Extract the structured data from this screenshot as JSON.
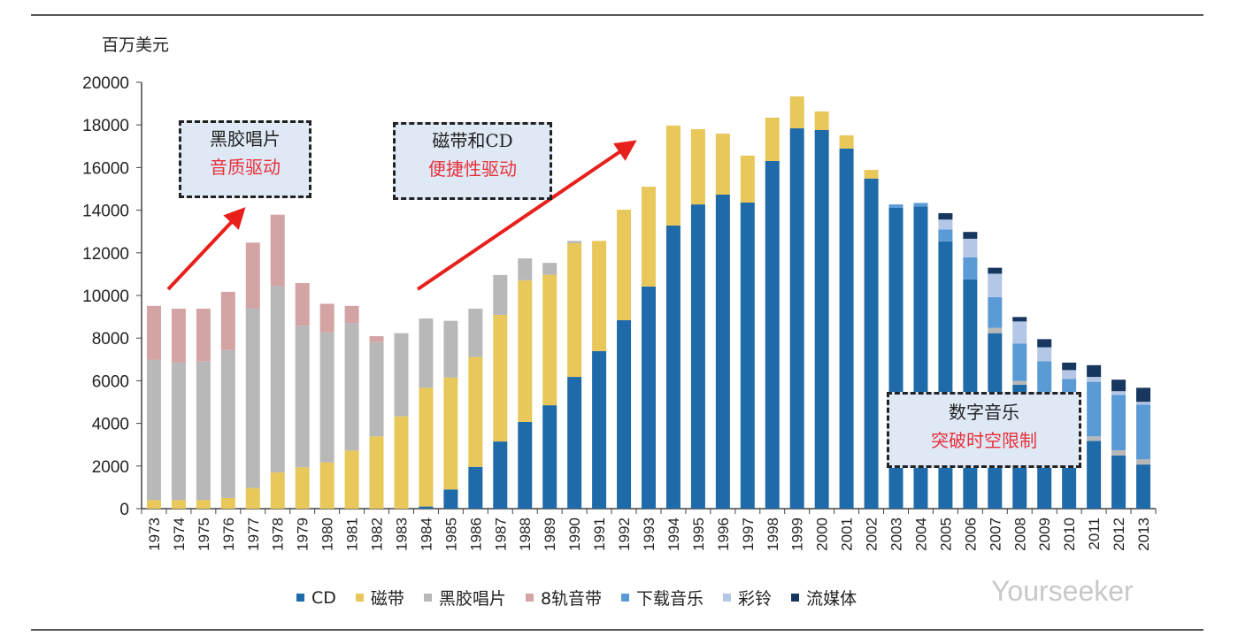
{
  "chart_data": {
    "type": "bar",
    "stacked": true,
    "ylabel": "百万美元",
    "ylim": [
      0,
      20000
    ],
    "yticks": [
      0,
      2000,
      4000,
      6000,
      8000,
      10000,
      12000,
      14000,
      16000,
      18000,
      20000
    ],
    "grid": false,
    "legend": "bottom",
    "categories": [
      "1973",
      "1974",
      "1975",
      "1976",
      "1977",
      "1978",
      "1979",
      "1980",
      "1981",
      "1982",
      "1983",
      "1984",
      "1985",
      "1986",
      "1987",
      "1988",
      "1989",
      "1990",
      "1991",
      "1992",
      "1993",
      "1994",
      "1995",
      "1996",
      "1997",
      "1998",
      "1999",
      "2000",
      "2001",
      "2002",
      "2003",
      "2004",
      "2005",
      "2006",
      "2007",
      "2008",
      "2009",
      "2010",
      "2011",
      "2012",
      "2013"
    ],
    "series": [
      {
        "name": "CD",
        "color": "#1f6aa8",
        "values": [
          0,
          0,
          0,
          0,
          0,
          0,
          0,
          0,
          0,
          0,
          0,
          100,
          900,
          1960,
          3150,
          4070,
          4850,
          6180,
          7390,
          8840,
          10420,
          13280,
          14270,
          14730,
          14360,
          16310,
          17840,
          17760,
          16890,
          15480,
          14110,
          14180,
          12540,
          10750,
          8230,
          5810,
          4300,
          3400,
          3180,
          2490,
          2070
        ]
      },
      {
        "name": "磁带",
        "color": "#e8c85a",
        "values": [
          400,
          400,
          400,
          500,
          970,
          1700,
          1940,
          2170,
          2730,
          3390,
          4330,
          5570,
          5250,
          5160,
          5940,
          6640,
          6120,
          6270,
          5170,
          5180,
          4680,
          4690,
          3530,
          2860,
          2200,
          2030,
          1500,
          870,
          620,
          410,
          0,
          0,
          0,
          0,
          0,
          0,
          0,
          0,
          0,
          0,
          0
        ]
      },
      {
        "name": "黑胶唱片",
        "color": "#b8b8b8",
        "values": [
          6590,
          6450,
          6500,
          6940,
          8430,
          8740,
          6640,
          6100,
          5980,
          4420,
          3900,
          3250,
          2660,
          2260,
          1870,
          1030,
          560,
          110,
          0,
          0,
          0,
          0,
          0,
          0,
          0,
          0,
          0,
          0,
          0,
          0,
          0,
          0,
          0,
          0,
          250,
          180,
          100,
          100,
          210,
          250,
          240
        ]
      },
      {
        "name": "8轨音带",
        "color": "#d4a3a3",
        "values": [
          2520,
          2530,
          2480,
          2730,
          3080,
          3350,
          2000,
          1340,
          800,
          280,
          0,
          0,
          0,
          0,
          0,
          0,
          0,
          0,
          0,
          0,
          0,
          0,
          0,
          0,
          0,
          0,
          0,
          0,
          0,
          0,
          0,
          0,
          0,
          0,
          0,
          0,
          0,
          0,
          0,
          0,
          0
        ]
      },
      {
        "name": "下载音乐",
        "color": "#5b9bd5",
        "values": [
          0,
          0,
          0,
          0,
          0,
          0,
          0,
          0,
          0,
          0,
          0,
          0,
          0,
          0,
          0,
          0,
          0,
          0,
          0,
          0,
          0,
          0,
          0,
          0,
          0,
          0,
          0,
          0,
          0,
          0,
          160,
          160,
          560,
          1040,
          1440,
          1760,
          2520,
          2590,
          2560,
          2600,
          2570
        ]
      },
      {
        "name": "彩铃",
        "color": "#b4c7e7",
        "values": [
          0,
          0,
          0,
          0,
          0,
          0,
          0,
          0,
          0,
          0,
          0,
          0,
          0,
          0,
          0,
          0,
          0,
          0,
          0,
          0,
          0,
          0,
          0,
          0,
          0,
          0,
          0,
          0,
          0,
          0,
          0,
          0,
          460,
          870,
          1100,
          1030,
          650,
          410,
          230,
          170,
          130
        ]
      },
      {
        "name": "流媒体",
        "color": "#17375e",
        "values": [
          0,
          0,
          0,
          0,
          0,
          0,
          0,
          0,
          0,
          0,
          0,
          0,
          0,
          0,
          0,
          0,
          0,
          0,
          0,
          0,
          0,
          0,
          0,
          0,
          0,
          0,
          0,
          0,
          0,
          0,
          0,
          0,
          300,
          320,
          280,
          210,
          380,
          350,
          550,
          540,
          660
        ]
      }
    ],
    "annotations": [
      {
        "line1": "黑胶唱片",
        "line2": "音质驱动"
      },
      {
        "line1": "磁带和CD",
        "line2": "便捷性驱动"
      },
      {
        "line1": "数字音乐",
        "line2": "突破时空限制"
      }
    ]
  },
  "watermark": "Yourseeker"
}
